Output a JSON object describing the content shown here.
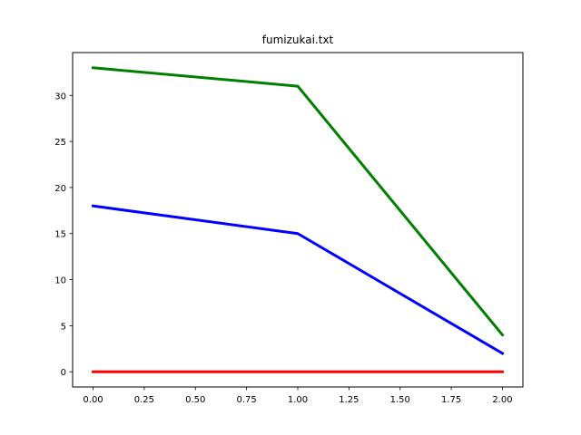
{
  "chart_data": {
    "type": "line",
    "title": "fumizukai.txt",
    "xlabel": "",
    "ylabel": "",
    "x": [
      0,
      1,
      2
    ],
    "xlim": [
      -0.1,
      2.1
    ],
    "ylim": [
      -1.65,
      34.65
    ],
    "xticks": [
      0.0,
      0.25,
      0.5,
      0.75,
      1.0,
      1.25,
      1.5,
      1.75,
      2.0
    ],
    "xtick_labels": [
      "0.00",
      "0.25",
      "0.50",
      "0.75",
      "1.00",
      "1.25",
      "1.50",
      "1.75",
      "2.00"
    ],
    "yticks": [
      0,
      5,
      10,
      15,
      20,
      25,
      30
    ],
    "ytick_labels": [
      "0",
      "5",
      "10",
      "15",
      "20",
      "25",
      "30"
    ],
    "grid": false,
    "legend": "none",
    "series": [
      {
        "color": "#008000",
        "values": [
          33,
          31,
          4
        ]
      },
      {
        "color": "#0000ff",
        "values": [
          18,
          15,
          2
        ]
      },
      {
        "color": "#ff0000",
        "values": [
          0,
          0,
          0
        ]
      }
    ]
  }
}
